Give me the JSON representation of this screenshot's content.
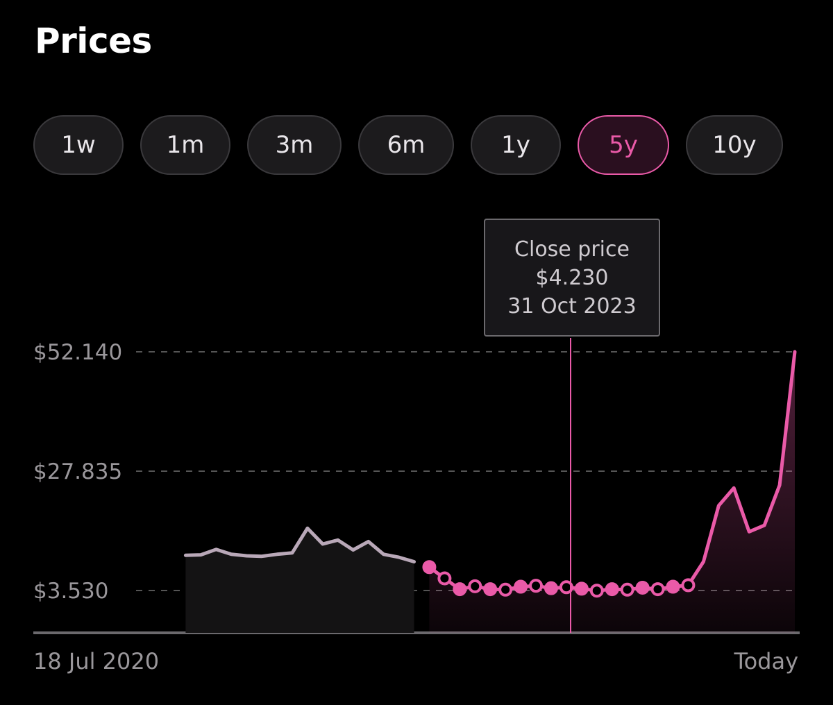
{
  "header": {
    "title": "Prices"
  },
  "ranges": [
    {
      "label": "1w",
      "active": false
    },
    {
      "label": "1m",
      "active": false
    },
    {
      "label": "3m",
      "active": false
    },
    {
      "label": "6m",
      "active": false
    },
    {
      "label": "1y",
      "active": false
    },
    {
      "label": "5y",
      "active": true
    },
    {
      "label": "10y",
      "active": false
    }
  ],
  "tooltip": {
    "label": "Close price",
    "value": "$4.230",
    "date": "31 Oct 2023"
  },
  "axis": {
    "start_label": "18 Jul 2020",
    "end_label": "Today"
  },
  "colors": {
    "accent": "#ea5aa8",
    "history_line": "#b9a8b8",
    "grid": "#555555",
    "axis_text": "#9a979b"
  },
  "chart_data": {
    "type": "line",
    "title": "",
    "xlabel": "",
    "ylabel": "",
    "x_range": [
      "18 Jul 2020",
      "Today"
    ],
    "ylim": [
      -11.45,
      52.14
    ],
    "y_ticks": [
      {
        "value": 52.14,
        "label": "$52.140"
      },
      {
        "value": 27.835,
        "label": "$27.835"
      },
      {
        "value": 3.53,
        "label": "$3.530"
      }
    ],
    "grid": "horizontal dashed",
    "highlight": {
      "date": "31 Oct 2023",
      "value": 4.23
    },
    "series": [
      {
        "x": [
          0.2,
          0.22,
          0.24,
          0.26,
          0.28,
          0.3,
          0.32,
          0.34,
          0.36,
          0.38,
          0.4,
          0.42,
          0.44,
          0.46,
          0.48,
          0.5
        ],
        "y": [
          10.7,
          10.8,
          11.9,
          10.9,
          10.6,
          10.5,
          10.9,
          11.2,
          16.2,
          13.0,
          13.8,
          11.8,
          13.5,
          10.9,
          10.3,
          9.4
        ]
      },
      {
        "x": [
          0.52,
          0.54,
          0.56,
          0.58,
          0.6,
          0.62,
          0.64,
          0.66,
          0.68,
          0.7,
          0.72,
          0.74,
          0.76,
          0.78,
          0.8,
          0.82,
          0.84,
          0.86,
          0.88,
          0.9,
          0.92,
          0.94,
          0.96,
          0.98,
          1.0
        ],
        "y": [
          8.3,
          6.0,
          3.8,
          4.4,
          3.8,
          3.7,
          4.3,
          4.5,
          4.0,
          4.2,
          3.9,
          3.5,
          3.8,
          3.7,
          4.1,
          3.8,
          4.3,
          4.6,
          9.4,
          20.8,
          24.4,
          15.5,
          16.8,
          25.0,
          52.14
        ]
      }
    ]
  }
}
